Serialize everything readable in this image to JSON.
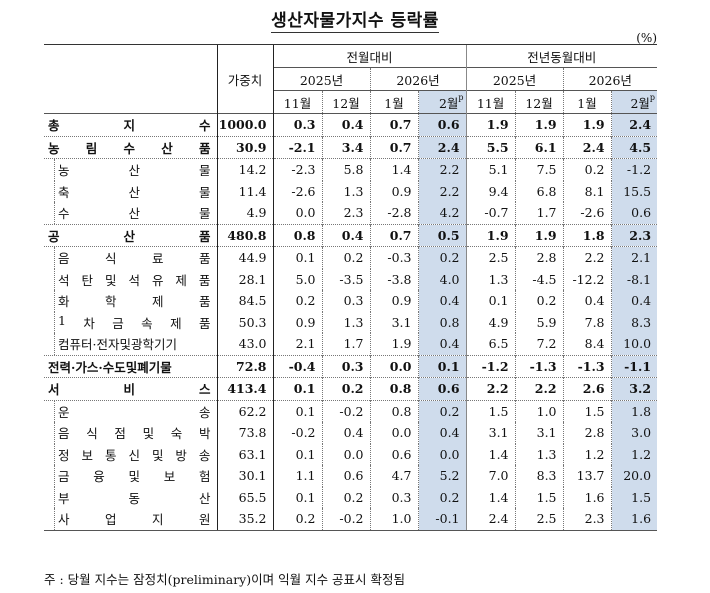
{
  "title": "생산자물가지수 등락률",
  "unit": "(%)",
  "header": {
    "weight": "가중치",
    "groups": [
      "전월대비",
      "전년동월대비"
    ],
    "years": [
      "2025년",
      "2026년",
      "2025년",
      "2026년"
    ],
    "months": [
      "11월",
      "12월",
      "1월",
      "2월",
      "11월",
      "12월",
      "1월",
      "2월"
    ],
    "prelim_mark": "p"
  },
  "rows": [
    {
      "label": "총지수",
      "chars": [
        "총",
        "지",
        "수"
      ],
      "weight": "1000.0",
      "mom": [
        "0.3",
        "0.4",
        "0.7",
        "0.6"
      ],
      "yoy": [
        "1.9",
        "1.9",
        "1.9",
        "2.4"
      ],
      "level": "main"
    },
    {
      "label": "농림수산품",
      "chars": [
        "농",
        "림",
        "수",
        "산",
        "품"
      ],
      "weight": "30.9",
      "mom": [
        "-2.1",
        "3.4",
        "0.7",
        "2.4"
      ],
      "yoy": [
        "5.5",
        "6.1",
        "2.4",
        "4.5"
      ],
      "level": "main"
    },
    {
      "label": "농산물",
      "chars": [
        "농",
        "산",
        "물"
      ],
      "weight": "14.2",
      "mom": [
        "-2.3",
        "5.8",
        "1.4",
        "2.2"
      ],
      "yoy": [
        "5.1",
        "7.5",
        "0.2",
        "-1.2"
      ],
      "level": "sub"
    },
    {
      "label": "축산물",
      "chars": [
        "축",
        "산",
        "물"
      ],
      "weight": "11.4",
      "mom": [
        "-2.6",
        "1.3",
        "0.9",
        "2.2"
      ],
      "yoy": [
        "9.4",
        "6.8",
        "8.1",
        "15.5"
      ],
      "level": "sub"
    },
    {
      "label": "수산물",
      "chars": [
        "수",
        "산",
        "물"
      ],
      "weight": "4.9",
      "mom": [
        "0.0",
        "2.3",
        "-2.8",
        "4.2"
      ],
      "yoy": [
        "-0.7",
        "1.7",
        "-2.6",
        "0.6"
      ],
      "level": "sub"
    },
    {
      "label": "공산품",
      "chars": [
        "공",
        "산",
        "품"
      ],
      "weight": "480.8",
      "mom": [
        "0.8",
        "0.4",
        "0.7",
        "0.5"
      ],
      "yoy": [
        "1.9",
        "1.9",
        "1.8",
        "2.3"
      ],
      "level": "main"
    },
    {
      "label": "음식료품",
      "chars": [
        "음",
        "식",
        "료",
        "품"
      ],
      "weight": "44.9",
      "mom": [
        "0.1",
        "0.2",
        "-0.3",
        "0.2"
      ],
      "yoy": [
        "2.5",
        "2.8",
        "2.2",
        "2.1"
      ],
      "level": "sub"
    },
    {
      "label": "석탄및석유제품",
      "chars": [
        "석",
        "탄",
        "및",
        "석",
        "유",
        "제",
        "품"
      ],
      "weight": "28.1",
      "mom": [
        "5.0",
        "-3.5",
        "-3.8",
        "4.0"
      ],
      "yoy": [
        "1.3",
        "-4.5",
        "-12.2",
        "-8.1"
      ],
      "level": "sub"
    },
    {
      "label": "화학제품",
      "chars": [
        "화",
        "학",
        "제",
        "품"
      ],
      "weight": "84.5",
      "mom": [
        "0.2",
        "0.3",
        "0.9",
        "0.4"
      ],
      "yoy": [
        "0.1",
        "0.2",
        "0.4",
        "0.4"
      ],
      "level": "sub"
    },
    {
      "label": "1차금속제품",
      "chars": [
        "1",
        "차",
        "금",
        "속",
        "제",
        "품"
      ],
      "weight": "50.3",
      "mom": [
        "0.9",
        "1.3",
        "3.1",
        "0.8"
      ],
      "yoy": [
        "4.9",
        "5.9",
        "7.8",
        "8.3"
      ],
      "level": "sub"
    },
    {
      "label": "컴퓨터·전자및광학기기",
      "chars": [
        "컴퓨터·전자및광학기기"
      ],
      "weight": "43.0",
      "mom": [
        "2.1",
        "1.7",
        "1.9",
        "0.4"
      ],
      "yoy": [
        "6.5",
        "7.2",
        "8.4",
        "10.0"
      ],
      "level": "sub"
    },
    {
      "label": "전력·가스·수도및폐기물",
      "chars": [
        "전력·가스·수도및폐기물"
      ],
      "weight": "72.8",
      "mom": [
        "-0.4",
        "0.3",
        "0.0",
        "0.1"
      ],
      "yoy": [
        "-1.2",
        "-1.3",
        "-1.3",
        "-1.1"
      ],
      "level": "main"
    },
    {
      "label": "서비스",
      "chars": [
        "서",
        "비",
        "스"
      ],
      "weight": "413.4",
      "mom": [
        "0.1",
        "0.2",
        "0.8",
        "0.6"
      ],
      "yoy": [
        "2.2",
        "2.2",
        "2.6",
        "3.2"
      ],
      "level": "main"
    },
    {
      "label": "운송",
      "chars": [
        "운",
        "송"
      ],
      "weight": "62.2",
      "mom": [
        "0.1",
        "-0.2",
        "0.8",
        "0.2"
      ],
      "yoy": [
        "1.5",
        "1.0",
        "1.5",
        "1.8"
      ],
      "level": "sub"
    },
    {
      "label": "음식점및숙박",
      "chars": [
        "음",
        "식",
        "점",
        "및",
        "숙",
        "박"
      ],
      "weight": "73.8",
      "mom": [
        "-0.2",
        "0.4",
        "0.0",
        "0.4"
      ],
      "yoy": [
        "3.1",
        "3.1",
        "2.8",
        "3.0"
      ],
      "level": "sub"
    },
    {
      "label": "정보통신및방송",
      "chars": [
        "정",
        "보",
        "통",
        "신",
        "및",
        "방",
        "송"
      ],
      "weight": "63.1",
      "mom": [
        "0.1",
        "0.0",
        "0.6",
        "0.0"
      ],
      "yoy": [
        "1.4",
        "1.3",
        "1.2",
        "1.2"
      ],
      "level": "sub"
    },
    {
      "label": "금융및보험",
      "chars": [
        "금",
        "융",
        "및",
        "보",
        "험"
      ],
      "weight": "30.1",
      "mom": [
        "1.1",
        "0.6",
        "4.7",
        "5.2"
      ],
      "yoy": [
        "7.0",
        "8.3",
        "13.7",
        "20.0"
      ],
      "level": "sub"
    },
    {
      "label": "부동산",
      "chars": [
        "부",
        "동",
        "산"
      ],
      "weight": "65.5",
      "mom": [
        "0.1",
        "0.2",
        "0.3",
        "0.2"
      ],
      "yoy": [
        "1.4",
        "1.5",
        "1.6",
        "1.5"
      ],
      "level": "sub"
    },
    {
      "label": "사업지원",
      "chars": [
        "사",
        "업",
        "지",
        "원"
      ],
      "weight": "35.2",
      "mom": [
        "0.2",
        "-0.2",
        "1.0",
        "-0.1"
      ],
      "yoy": [
        "2.4",
        "2.5",
        "2.3",
        "1.6"
      ],
      "level": "sub"
    }
  ],
  "footnote": "주 : 당월 지수는 잠정치(preliminary)이며 익월 지수 공표시 확정됨",
  "colors": {
    "shade": "#cfdcec",
    "text": "#111111"
  }
}
